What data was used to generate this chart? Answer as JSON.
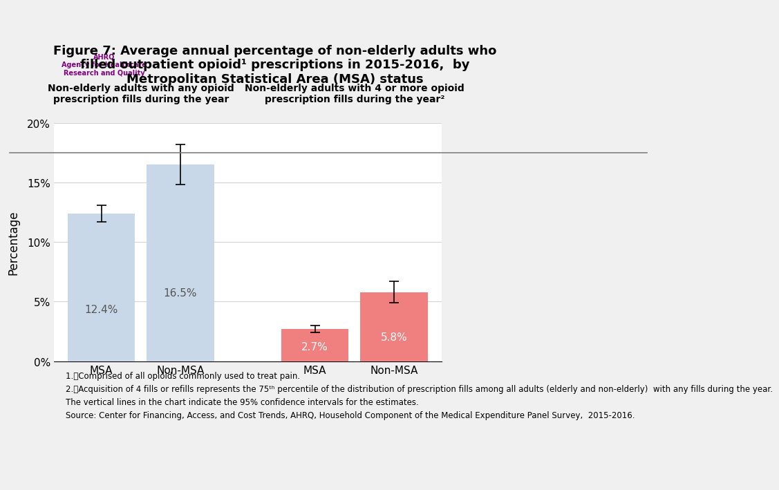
{
  "title_line1": "Figure 7: Average annual percentage of non-elderly adults who",
  "title_line2": "filled outpatient opioid¹ prescriptions in 2015-2016,  by",
  "title_line3": "Metropolitan Statistical Area (MSA) status",
  "group1_label": "Non-elderly adults with any opioid\nprescription fills during the year",
  "group2_label": "Non-elderly adults with 4 or more opioid\nprescription fills during the year²",
  "bar_labels": [
    "MSA",
    "Non-MSA",
    "MSA",
    "Non-MSA"
  ],
  "bar_values": [
    12.4,
    16.5,
    2.7,
    5.8
  ],
  "bar_errors": [
    0.7,
    1.7,
    0.3,
    0.9
  ],
  "bar_colors": [
    "#c8d8e8",
    "#c8d8e8",
    "#f08080",
    "#f08080"
  ],
  "bar_text_colors": [
    "#555555",
    "#555555",
    "#ffffff",
    "#ffffff"
  ],
  "bar_value_labels": [
    "12.4%",
    "16.5%",
    "2.7%",
    "5.8%"
  ],
  "ylabel": "Percentage",
  "ylim": [
    0,
    20
  ],
  "yticks": [
    0,
    5,
    10,
    15,
    20
  ],
  "ytick_labels": [
    "0%",
    "5%",
    "10%",
    "15%",
    "20%"
  ],
  "background_color": "#f0f0f0",
  "plot_background": "#ffffff",
  "header_bg": "#d8d8d8",
  "footnote1": "1.\tComprised of all opioids commonly used to treat pain.",
  "footnote2": "2.\tAcquisition of 4 fills or refills represents the 75th percentile of the distribution of prescription fills among all adults (elderly and non-elderly)  with any\nfills during the year.",
  "footnote3": "The vertical lines in the chart indicate the 95% confidence intervals for the estimates.",
  "footnote4": "Source: Center for Financing, Access, and Cost Trends, AHRQ, Household Component of the Medical Expenditure Panel Survey,  2015-2016."
}
